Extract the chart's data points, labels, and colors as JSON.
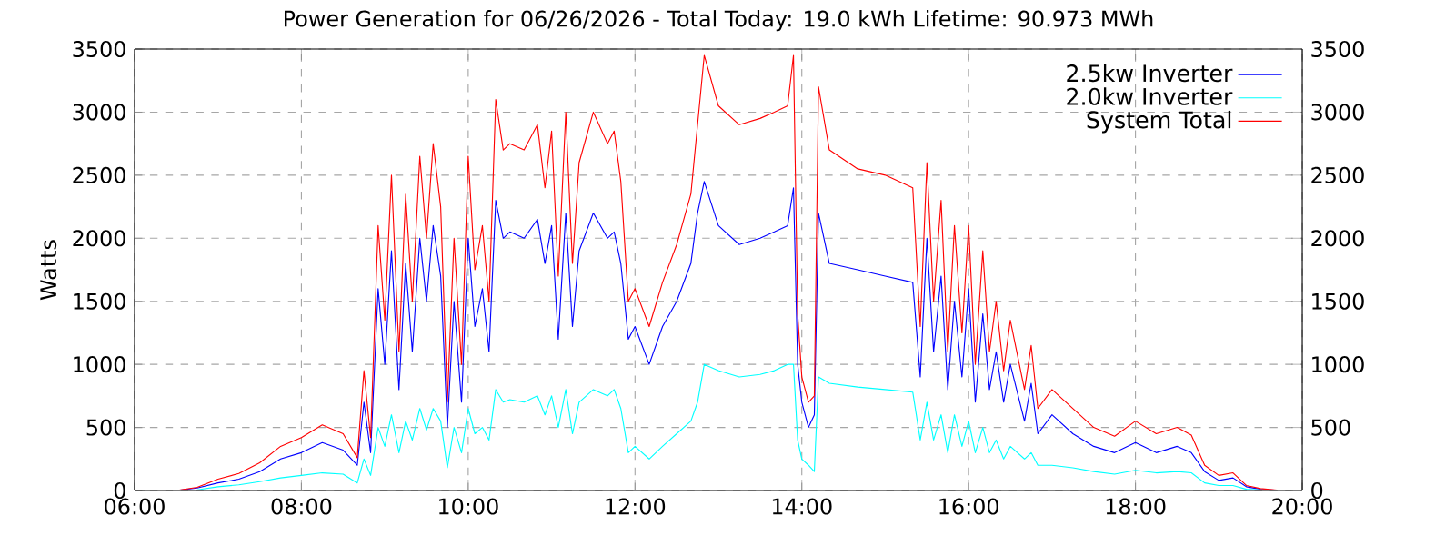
{
  "chart_data": {
    "type": "line",
    "title": "Power Generation for 06/26/2026 - Total Today: 19.0 kWh   Lifetime: 90.973 MWh",
    "ylabel": "Watts",
    "x": [
      6.5,
      6.75,
      7.0,
      7.25,
      7.5,
      7.75,
      8.0,
      8.25,
      8.5,
      8.67,
      8.75,
      8.83,
      8.92,
      9.0,
      9.08,
      9.17,
      9.25,
      9.33,
      9.42,
      9.5,
      9.58,
      9.67,
      9.75,
      9.83,
      9.92,
      10.0,
      10.08,
      10.17,
      10.25,
      10.33,
      10.42,
      10.5,
      10.67,
      10.83,
      10.92,
      11.0,
      11.08,
      11.17,
      11.25,
      11.33,
      11.5,
      11.67,
      11.75,
      11.83,
      11.92,
      12.0,
      12.17,
      12.33,
      12.5,
      12.67,
      12.75,
      12.83,
      13.0,
      13.25,
      13.5,
      13.67,
      13.83,
      13.9,
      13.95,
      14.0,
      14.08,
      14.15,
      14.2,
      14.33,
      14.67,
      15.0,
      15.33,
      15.42,
      15.5,
      15.58,
      15.67,
      15.75,
      15.83,
      15.92,
      16.0,
      16.08,
      16.17,
      16.25,
      16.33,
      16.42,
      16.5,
      16.67,
      16.75,
      16.83,
      17.0,
      17.25,
      17.5,
      17.75,
      18.0,
      18.25,
      18.5,
      18.67,
      18.83,
      19.0,
      19.17,
      19.33,
      19.5,
      19.75
    ],
    "series": [
      {
        "name": "2.5kw Inverter",
        "color": "#0000ff",
        "values": [
          0,
          20,
          60,
          90,
          150,
          250,
          300,
          380,
          320,
          200,
          700,
          300,
          1600,
          1000,
          1900,
          800,
          1800,
          1100,
          2000,
          1500,
          2100,
          1700,
          500,
          1500,
          700,
          2000,
          1300,
          1600,
          1100,
          2300,
          2000,
          2050,
          2000,
          2150,
          1800,
          2100,
          1200,
          2200,
          1300,
          1900,
          2200,
          2000,
          2050,
          1800,
          1200,
          1300,
          1000,
          1300,
          1500,
          1800,
          2200,
          2450,
          2100,
          1950,
          2000,
          2050,
          2100,
          2400,
          1000,
          700,
          500,
          600,
          2200,
          1800,
          1750,
          1700,
          1650,
          900,
          2000,
          1100,
          1700,
          800,
          1500,
          900,
          1600,
          700,
          1400,
          800,
          1100,
          700,
          1000,
          550,
          850,
          450,
          600,
          450,
          350,
          300,
          380,
          300,
          350,
          300,
          150,
          80,
          100,
          30,
          10,
          0
        ]
      },
      {
        "name": "2.0kw Inverter",
        "color": "#00ffff",
        "values": [
          0,
          5,
          30,
          45,
          70,
          100,
          120,
          140,
          130,
          60,
          250,
          120,
          500,
          350,
          600,
          300,
          550,
          400,
          650,
          480,
          650,
          550,
          180,
          500,
          300,
          650,
          450,
          500,
          400,
          800,
          700,
          720,
          700,
          750,
          600,
          750,
          500,
          800,
          450,
          700,
          800,
          750,
          800,
          650,
          300,
          350,
          250,
          350,
          450,
          550,
          700,
          1000,
          950,
          900,
          920,
          950,
          1000,
          1000,
          400,
          250,
          200,
          150,
          900,
          850,
          820,
          800,
          780,
          400,
          700,
          400,
          600,
          300,
          600,
          350,
          550,
          300,
          500,
          300,
          400,
          250,
          350,
          250,
          300,
          200,
          200,
          180,
          150,
          130,
          160,
          140,
          150,
          140,
          60,
          40,
          40,
          10,
          5,
          0
        ]
      },
      {
        "name": "System Total",
        "color": "#ff0000",
        "values": [
          0,
          25,
          90,
          135,
          220,
          350,
          420,
          520,
          450,
          260,
          950,
          420,
          2100,
          1350,
          2500,
          1100,
          2350,
          1500,
          2650,
          2000,
          2750,
          2250,
          700,
          2000,
          1000,
          2650,
          1750,
          2100,
          1500,
          3100,
          2700,
          2750,
          2700,
          2900,
          2400,
          2850,
          1700,
          3000,
          1800,
          2600,
          3000,
          2750,
          2850,
          2450,
          1500,
          1600,
          1300,
          1650,
          1950,
          2350,
          2900,
          3450,
          3050,
          2900,
          2950,
          3000,
          3050,
          3450,
          1400,
          900,
          700,
          750,
          3200,
          2700,
          2550,
          2500,
          2400,
          1300,
          2600,
          1500,
          2300,
          1100,
          2100,
          1250,
          2100,
          1000,
          1900,
          1100,
          1500,
          950,
          1350,
          800,
          1150,
          650,
          800,
          650,
          500,
          430,
          550,
          450,
          500,
          440,
          200,
          120,
          140,
          40,
          15,
          0
        ]
      }
    ],
    "xlim": [
      6,
      20
    ],
    "xticks": [
      {
        "value": 6,
        "label": "06:00"
      },
      {
        "value": 8,
        "label": "08:00"
      },
      {
        "value": 10,
        "label": "10:00"
      },
      {
        "value": 12,
        "label": "12:00"
      },
      {
        "value": 14,
        "label": "14:00"
      },
      {
        "value": 16,
        "label": "16:00"
      },
      {
        "value": 18,
        "label": "18:00"
      },
      {
        "value": 20,
        "label": "20:00"
      }
    ],
    "ylim": [
      0,
      3500
    ],
    "yticks": [
      0,
      500,
      1000,
      1500,
      2000,
      2500,
      3000,
      3500
    ],
    "y2lim": [
      0,
      3500
    ],
    "y2ticks": [
      0,
      500,
      1000,
      1500,
      2000,
      2500,
      3000,
      3500
    ],
    "grid": true,
    "legend": "top right",
    "line_style": "solid"
  }
}
